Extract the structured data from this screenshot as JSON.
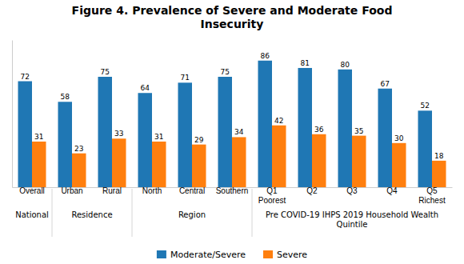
{
  "chart_data": {
    "type": "bar",
    "title": "Figure 4. Prevalence of Severe and Moderate Food\nInsecurity",
    "categories": [
      "Overall",
      "Urban",
      "Rural",
      "North",
      "Central",
      "Southern",
      "Q1\nPoorest",
      "Q2",
      "Q3",
      "Q4",
      "Q5\nRichest"
    ],
    "category_groups": [
      {
        "label": "National",
        "members": [
          "Overall"
        ]
      },
      {
        "label": "Residence",
        "members": [
          "Urban",
          "Rural"
        ]
      },
      {
        "label": "Region",
        "members": [
          "North",
          "Central",
          "Southern"
        ]
      },
      {
        "label": "Pre COVID-19 IHPS 2019 Household Wealth\nQuintile",
        "members": [
          "Q1\nPoorest",
          "Q2",
          "Q3",
          "Q4",
          "Q5\nRichest"
        ]
      }
    ],
    "series": [
      {
        "name": "Moderate/Severe",
        "values": [
          72,
          58,
          75,
          64,
          71,
          75,
          86,
          81,
          80,
          67,
          52
        ]
      },
      {
        "name": "Severe",
        "values": [
          31,
          23,
          33,
          31,
          29,
          34,
          42,
          36,
          35,
          30,
          18
        ]
      }
    ],
    "ylim": [
      0,
      100
    ],
    "data_labels": true,
    "tick_labels": "x",
    "grid": false,
    "legend": "bottom"
  }
}
